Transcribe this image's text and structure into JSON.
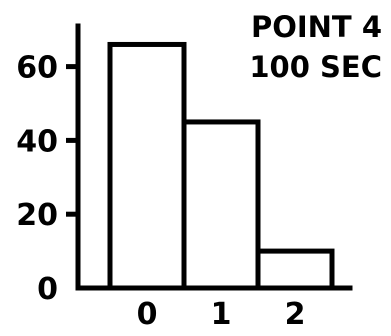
{
  "chart_data": {
    "type": "bar",
    "title_lines": [
      "POINT 4",
      "100 SEC"
    ],
    "categories": [
      "0",
      "1",
      "2"
    ],
    "values": [
      66,
      45,
      10
    ],
    "yticks": [
      "0",
      "20",
      "40",
      "60"
    ],
    "ylim": [
      0,
      72
    ],
    "xlabel": "",
    "ylabel": "",
    "grid": false,
    "colors": {
      "bar_fill": "#ffffff",
      "bar_stroke": "#000000"
    }
  }
}
